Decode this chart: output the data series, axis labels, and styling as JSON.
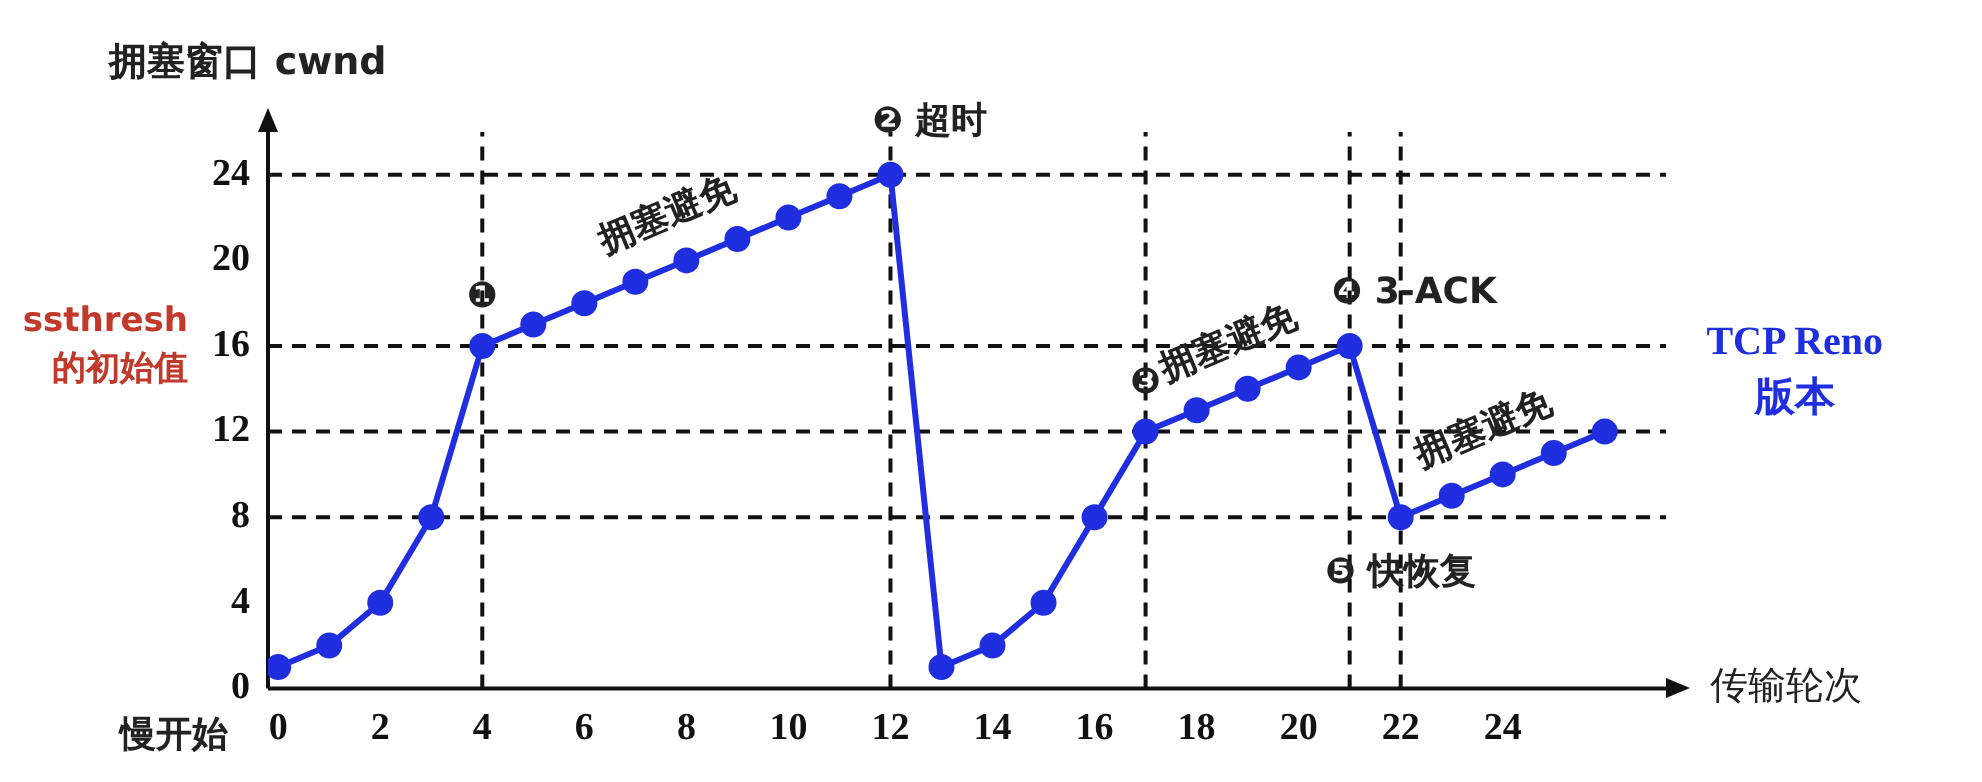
{
  "chart_data": {
    "type": "line",
    "xlabel": "传输轮次",
    "ylabel": "拥塞窗口 cwnd",
    "x": [
      0,
      1,
      2,
      3,
      4,
      5,
      6,
      7,
      8,
      9,
      10,
      11,
      12,
      13,
      14,
      15,
      16,
      17,
      18,
      19,
      20,
      21,
      22,
      23,
      24,
      25,
      26
    ],
    "series": [
      {
        "name": "TCP Reno 版本",
        "color": "#1f2fe0",
        "values": [
          1,
          2,
          4,
          8,
          16,
          17,
          18,
          19,
          20,
          21,
          22,
          23,
          24,
          1,
          2,
          4,
          8,
          12,
          13,
          14,
          15,
          16,
          8,
          9,
          10,
          11,
          12
        ]
      }
    ],
    "xlim": [
      -0.2,
      27.2
    ],
    "ylim": [
      0,
      26
    ],
    "xticks": [
      0,
      2,
      4,
      6,
      8,
      10,
      12,
      14,
      16,
      18,
      20,
      22,
      24
    ],
    "yticks": [
      0,
      4,
      8,
      12,
      16,
      20,
      24
    ],
    "grid": false,
    "legend": false,
    "marker": "circle",
    "line_style": "solid",
    "ref_lines": [
      {
        "axis": "y",
        "value": 24,
        "line_style": "dashed"
      },
      {
        "axis": "y",
        "value": 16,
        "label": "ssthresh 的初始值",
        "line_style": "dashed"
      },
      {
        "axis": "y",
        "value": 12,
        "line_style": "dashed"
      },
      {
        "axis": "y",
        "value": 8,
        "line_style": "dashed"
      },
      {
        "axis": "x",
        "value": 4,
        "line_style": "dashed"
      },
      {
        "axis": "x",
        "value": 12,
        "line_style": "dashed"
      },
      {
        "axis": "x",
        "value": 17,
        "line_style": "dashed"
      },
      {
        "axis": "x",
        "value": 21,
        "line_style": "dashed"
      },
      {
        "axis": "x",
        "value": 22,
        "line_style": "dashed"
      }
    ],
    "annotations": [
      {
        "text": "❶",
        "x": 4,
        "y": 16
      },
      {
        "text": "❷ 超时",
        "x": 12,
        "y": 24
      },
      {
        "text": "❸",
        "x": 17,
        "y": 12
      },
      {
        "text": "❹ 3-ACK",
        "x": 21,
        "y": 16
      },
      {
        "text": "❺ 快恢复",
        "x": 22,
        "y": 8
      },
      {
        "text": "拥塞避免",
        "x": 8,
        "y": 20
      },
      {
        "text": "拥塞避免",
        "x": 19,
        "y": 14
      },
      {
        "text": "拥塞避免",
        "x": 24,
        "y": 10
      },
      "慢开始"
    ]
  }
}
